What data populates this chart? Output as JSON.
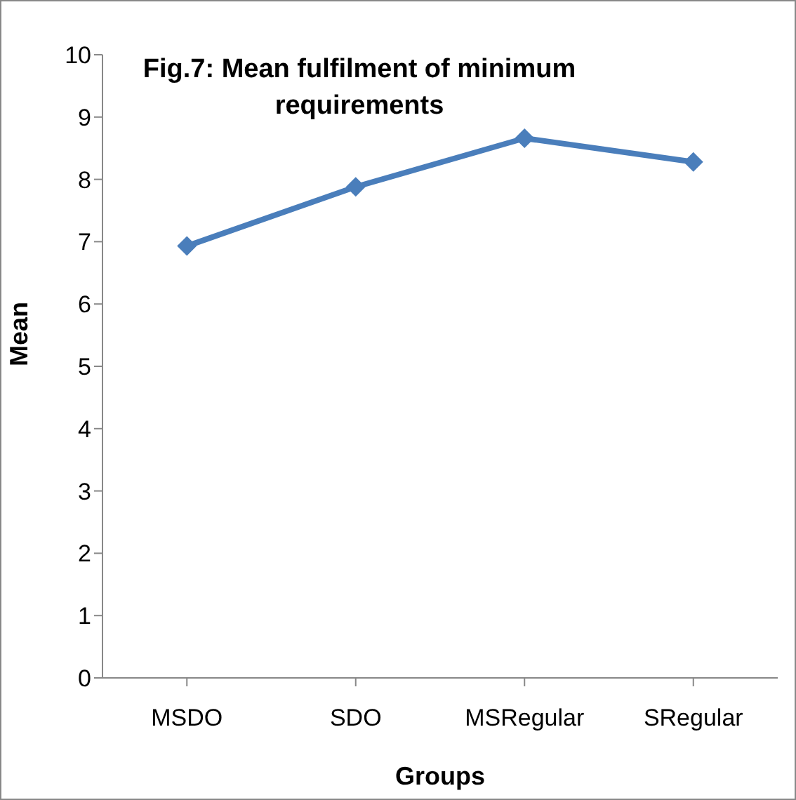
{
  "chart_data": {
    "type": "line",
    "title": "Fig.7: Mean fulfilment of minimum requirements",
    "xlabel": "Groups",
    "ylabel": "Mean",
    "categories": [
      "MSDO",
      "SDO",
      "MSRegular",
      "SRegular"
    ],
    "series": [
      {
        "color": "#4a7ebb",
        "values": [
          6.93,
          7.88,
          8.66,
          8.28
        ]
      }
    ],
    "ylim": [
      0,
      10
    ],
    "yticks": [
      0,
      1,
      2,
      3,
      4,
      5,
      6,
      7,
      8,
      9,
      10
    ],
    "marker": "diamond",
    "line_style": "solid"
  }
}
